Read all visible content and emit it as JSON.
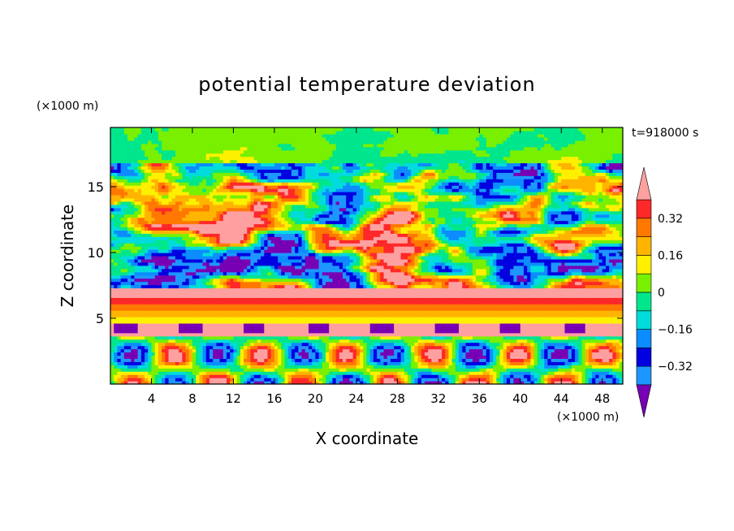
{
  "chart_data": {
    "type": "heatmap",
    "title": "potential temperature deviation",
    "time_label": "t=918000 s",
    "xlabel": "X coordinate",
    "ylabel": "Z coordinate",
    "x_unit": "(×1000 m)",
    "y_unit": "(×1000 m)",
    "xlim": [
      0,
      50
    ],
    "ylim": [
      0,
      19.5
    ],
    "x_ticks": [
      4,
      8,
      12,
      16,
      20,
      24,
      28,
      32,
      36,
      40,
      44,
      48
    ],
    "y_ticks": [
      5,
      10,
      15
    ],
    "colorbar": {
      "levels": [
        -0.4,
        -0.32,
        -0.24,
        -0.16,
        -0.08,
        0,
        0.08,
        0.16,
        0.24,
        0.32,
        0.4
      ],
      "tick_labels": [
        "0.32",
        "0.16",
        "0",
        "−0.16",
        "−0.32"
      ],
      "tick_values": [
        0.32,
        0.16,
        0,
        -0.16,
        -0.32
      ],
      "colors": [
        "#1e96ff",
        "#0000e0",
        "#0c8cff",
        "#00dcdc",
        "#00e68c",
        "#78f000",
        "#fff000",
        "#ffb400",
        "#ff7800",
        "#ff2828"
      ],
      "under_color": "#7800b4",
      "over_color": "#ffa0a0",
      "extend": "both"
    },
    "field_description_layers": [
      {
        "z_range": [
          0,
          3.5
        ],
        "value_range": [
          -0.32,
          0.32
        ],
        "pattern": "alternating warm/cool convective cells"
      },
      {
        "z_range": [
          3.5,
          4.5
        ],
        "value": 0.45,
        "pattern": "pink band with purple caps"
      },
      {
        "z_range": [
          4.5,
          7
        ],
        "value": 0.3,
        "pattern": "stratified warm bands (red/orange/yellow)"
      },
      {
        "z_range": [
          7,
          16.5
        ],
        "value_range": [
          -0.45,
          0.45
        ],
        "pattern": "turbulent mixed layer"
      },
      {
        "z_range": [
          16.5,
          19.5
        ],
        "value_range": [
          -0.08,
          0.08
        ],
        "pattern": "calm green upper layer"
      }
    ]
  }
}
